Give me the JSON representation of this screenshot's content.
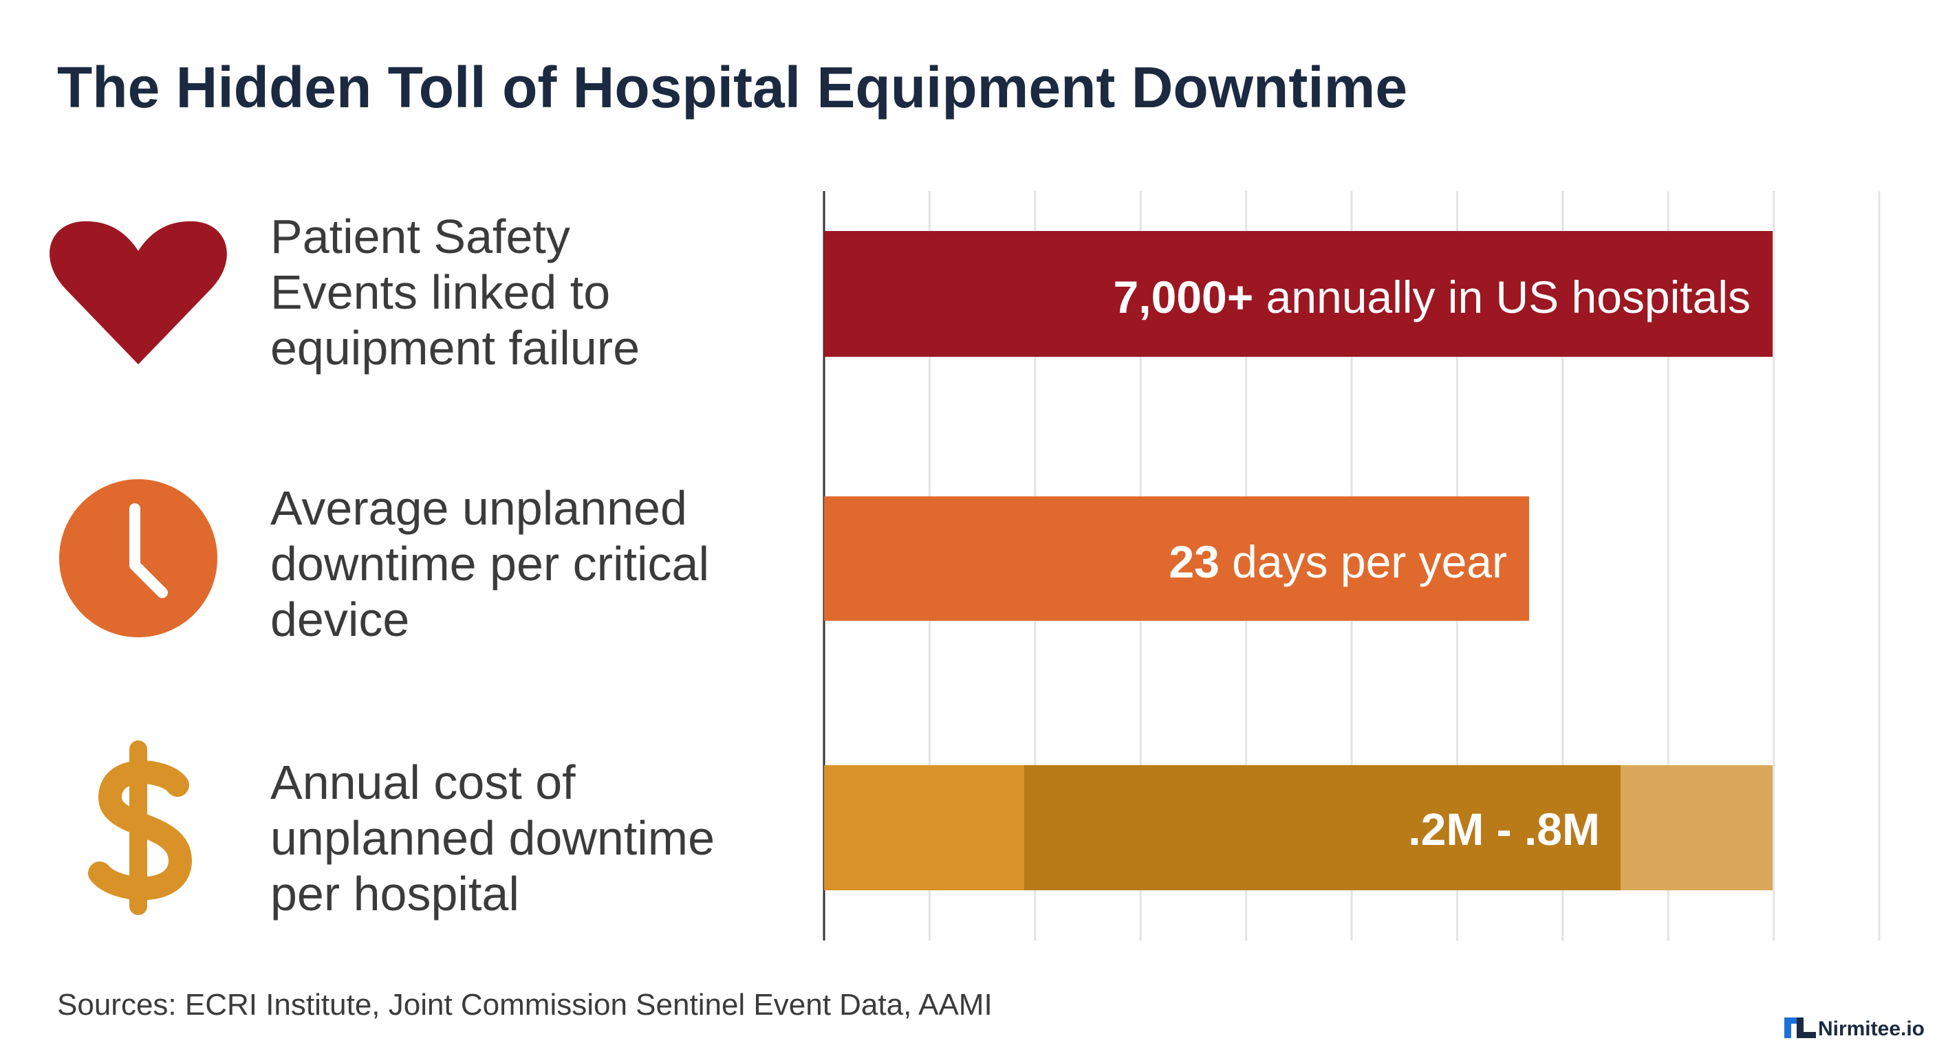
{
  "header": {
    "title": "The Hidden Toll of Hospital Equipment Downtime"
  },
  "rows": [
    {
      "label": [
        "Patient Safety",
        "Events linked to",
        "equipment failure"
      ],
      "value_strong": "7,000+",
      "value_rest": " annually in US hospitals"
    },
    {
      "label": [
        "Average unplanned",
        "downtime per critical",
        "device"
      ],
      "value_strong": "23",
      "value_rest": " days per year"
    },
    {
      "label": [
        "Annual cost of",
        "unplanned downtime",
        "per hospital"
      ],
      "value_strong": ".2M - .8M",
      "value_rest": ""
    }
  ],
  "footer": {
    "sources": "Sources: ECRI Institute, Joint Commission Sentinel Event Data, AAMI",
    "brand": "Nirmitee.io"
  }
}
